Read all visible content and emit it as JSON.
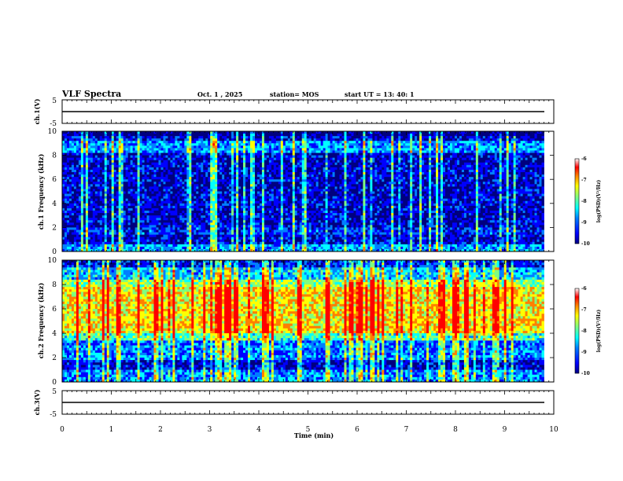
{
  "header": {
    "title": "VLF Spectra",
    "date": "Oct. 1 , 2025",
    "station": "station= MOS",
    "start": "start UT = 13: 40: 1"
  },
  "chart_data": [
    {
      "type": "line",
      "panel": "ch1-waveform",
      "ylabel": "ch.1(V)",
      "ylim": [
        -5,
        5
      ],
      "yticks": [
        "5",
        "-5"
      ],
      "xlim": [
        0,
        10
      ],
      "series": [
        {
          "x": [
            0,
            9.8
          ],
          "y": [
            0,
            0
          ]
        }
      ]
    },
    {
      "type": "heatmap",
      "panel": "ch1-spectrogram",
      "ylabel": "ch.1 Frequency (kHz)",
      "ylim": [
        0,
        10
      ],
      "yticks": [
        "0",
        "2",
        "4",
        "6",
        "8",
        "10"
      ],
      "xlim": [
        0,
        10
      ],
      "data_end_min": 9.8,
      "colorbar": {
        "range": [
          -10,
          -6
        ],
        "ticks": [
          "-6",
          "-7",
          "-8",
          "-9",
          "-10"
        ],
        "label": "log(PSD)(V²/Hz)"
      }
    },
    {
      "type": "heatmap",
      "panel": "ch2-spectrogram",
      "ylabel": "ch.2 Frequency (kHz)",
      "ylim": [
        0,
        10
      ],
      "yticks": [
        "0",
        "2",
        "4",
        "6",
        "8",
        "10"
      ],
      "xlim": [
        0,
        10
      ],
      "data_end_min": 9.8,
      "colorbar": {
        "range": [
          -10,
          -6
        ],
        "ticks": [
          "-6",
          "-7",
          "-8",
          "-9",
          "-10"
        ],
        "label": "log(PSD)(V²/Hz)"
      }
    },
    {
      "type": "line",
      "panel": "ch3-waveform",
      "ylabel": "ch.3(V)",
      "ylim": [
        -5,
        5
      ],
      "yticks": [
        "5",
        "-5"
      ],
      "xlim": [
        0,
        10
      ],
      "xticks": [
        "0",
        "1",
        "2",
        "3",
        "4",
        "5",
        "6",
        "7",
        "8",
        "9",
        "10"
      ],
      "xlabel": "Time (min)",
      "series": [
        {
          "x": [
            0,
            9.8
          ],
          "y": [
            0,
            0
          ]
        }
      ]
    }
  ],
  "colors": {
    "jet": [
      "#00007f",
      "#0000ff",
      "#007fff",
      "#00ffff",
      "#7fff7f",
      "#ffff00",
      "#ff7f00",
      "#ff0000",
      "#ffffff"
    ],
    "axis": "#000000",
    "background": "#ffffff"
  }
}
